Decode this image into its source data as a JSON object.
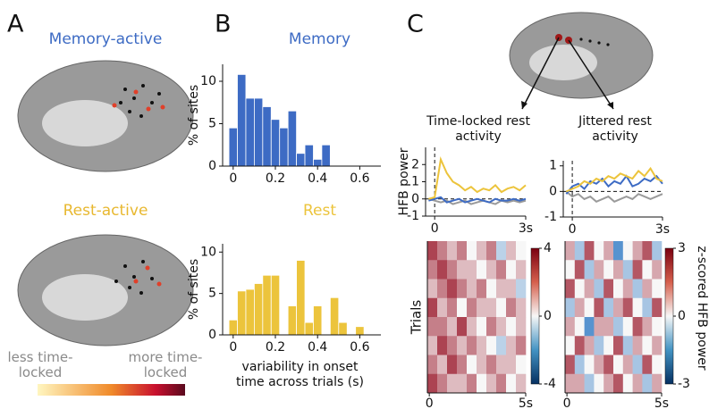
{
  "panels": {
    "a": {
      "label": "A",
      "memory_title": "Memory-active",
      "rest_title": "Rest-active",
      "colorbar_low": "less time-locked",
      "colorbar_high": "more time-locked"
    },
    "b": {
      "label": "B"
    },
    "c": {
      "label": "C"
    }
  },
  "chart_data": [
    {
      "type": "histogram",
      "title": "Memory",
      "ylabel": "% of sites",
      "color": "#3d6bc4",
      "bins": [
        -0.02,
        0.02,
        0.06,
        0.1,
        0.14,
        0.18,
        0.22,
        0.26,
        0.3,
        0.34,
        0.38,
        0.42,
        0.46
      ],
      "values": [
        4.5,
        10.8,
        8,
        8,
        7,
        5.5,
        4.5,
        6.5,
        1.5,
        2.5,
        0.8,
        2.5
      ],
      "xlim": [
        -0.05,
        0.7
      ],
      "xticks": [
        0,
        0.2,
        0.4,
        0.6
      ],
      "ylim": [
        0,
        12
      ],
      "yticks": [
        0,
        5,
        10
      ]
    },
    {
      "type": "histogram",
      "title": "Rest",
      "ylabel": "% of sites",
      "xlabel": "variability in onset time across trials (s)",
      "color": "#ecc43c",
      "bins": [
        -0.02,
        0.02,
        0.06,
        0.1,
        0.14,
        0.18,
        0.22,
        0.26,
        0.3,
        0.34,
        0.38,
        0.42,
        0.46,
        0.5,
        0.54,
        0.58,
        0.62
      ],
      "values": [
        1.8,
        5.3,
        5.5,
        6.2,
        7.2,
        7.2,
        0,
        3.5,
        9,
        1.5,
        3.5,
        0,
        4.5,
        1.5,
        0,
        1
      ],
      "xlim": [
        -0.05,
        0.7
      ],
      "xticks": [
        0,
        0.2,
        0.4,
        0.6
      ],
      "ylim": [
        0,
        11
      ],
      "yticks": [
        0,
        5,
        10
      ]
    },
    {
      "type": "line",
      "title": "Time-locked rest activity",
      "ylabel": "HFB power",
      "x": [
        -0.2,
        0,
        0.2,
        0.4,
        0.6,
        0.8,
        1,
        1.2,
        1.4,
        1.6,
        1.8,
        2,
        2.2,
        2.4,
        2.6,
        2.8,
        3
      ],
      "series": [
        {
          "color": "#9a9a9a",
          "values": [
            0,
            -0.1,
            -0.2,
            -0.1,
            -0.3,
            -0.2,
            -0.1,
            -0.3,
            -0.2,
            -0.1,
            -0.2,
            -0.3,
            -0.1,
            -0.2,
            -0.1,
            -0.2,
            -0.1
          ]
        },
        {
          "color": "#3d6bc4",
          "values": [
            -0.1,
            0,
            0.1,
            -0.2,
            -0.1,
            0,
            -0.2,
            -0.1,
            0,
            -0.1,
            -0.2,
            0,
            -0.1,
            -0.1,
            0,
            -0.1,
            0
          ]
        },
        {
          "color": "#ecc43c",
          "values": [
            0,
            0.1,
            2.3,
            1.5,
            1,
            0.8,
            0.5,
            0.7,
            0.4,
            0.6,
            0.5,
            0.8,
            0.4,
            0.6,
            0.7,
            0.5,
            0.8
          ]
        }
      ],
      "xlim": [
        -0.3,
        3
      ],
      "xticks": [
        0,
        {
          "value": 3,
          "label": "3s"
        }
      ],
      "ylim": [
        -1,
        3
      ],
      "yticks": [
        -1,
        0,
        1,
        2
      ]
    },
    {
      "type": "line",
      "title": "Jittered rest activity",
      "x": [
        -0.2,
        0,
        0.2,
        0.4,
        0.6,
        0.8,
        1,
        1.2,
        1.4,
        1.6,
        1.8,
        2,
        2.2,
        2.4,
        2.6,
        2.8,
        3
      ],
      "series": [
        {
          "color": "#9a9a9a",
          "values": [
            0,
            -0.2,
            -0.1,
            -0.3,
            -0.2,
            -0.4,
            -0.3,
            -0.2,
            -0.4,
            -0.3,
            -0.2,
            -0.3,
            -0.1,
            -0.2,
            -0.3,
            -0.2,
            -0.1
          ]
        },
        {
          "color": "#3d6bc4",
          "values": [
            -0.1,
            0.2,
            0.3,
            0.1,
            0.4,
            0.3,
            0.5,
            0.2,
            0.4,
            0.3,
            0.6,
            0.2,
            0.3,
            0.5,
            0.4,
            0.6,
            0.3
          ]
        },
        {
          "color": "#ecc43c",
          "values": [
            0,
            0.1,
            0.2,
            0.4,
            0.3,
            0.5,
            0.4,
            0.6,
            0.5,
            0.7,
            0.6,
            0.5,
            0.8,
            0.6,
            0.9,
            0.5,
            0.4
          ]
        }
      ],
      "xlim": [
        -0.3,
        3
      ],
      "xticks": [
        0,
        {
          "value": 3,
          "label": "3s"
        }
      ],
      "ylim": [
        -1,
        1.2
      ],
      "yticks": [
        -1,
        0,
        1
      ]
    },
    {
      "type": "heatmap",
      "ylabel": "Trials",
      "xlim": [
        -0.1,
        5
      ],
      "xticks": [
        0,
        {
          "value": 5,
          "label": "5s"
        }
      ],
      "clim": [
        -4,
        4
      ],
      "cticks": [
        4,
        0,
        -4
      ],
      "values": [
        [
          3,
          2,
          1,
          2,
          0,
          1,
          2,
          -1,
          1,
          0
        ],
        [
          2,
          3,
          2,
          1,
          1,
          0,
          1,
          2,
          0,
          1
        ],
        [
          1,
          2,
          3,
          2,
          1,
          2,
          0,
          1,
          1,
          -1
        ],
        [
          3,
          1,
          2,
          0,
          2,
          1,
          1,
          0,
          2,
          1
        ],
        [
          2,
          2,
          1,
          3,
          1,
          0,
          2,
          1,
          0,
          1
        ],
        [
          1,
          3,
          2,
          1,
          2,
          1,
          0,
          -1,
          1,
          2
        ],
        [
          2,
          1,
          3,
          2,
          0,
          1,
          2,
          1,
          1,
          0
        ],
        [
          3,
          2,
          1,
          1,
          2,
          0,
          1,
          2,
          0,
          1
        ]
      ]
    },
    {
      "type": "heatmap",
      "clabel": "z-scored HFB power",
      "xlim": [
        -0.1,
        5
      ],
      "xticks": [
        0,
        {
          "value": 5,
          "label": "5s"
        }
      ],
      "clim": [
        -3,
        3
      ],
      "cticks": [
        3,
        0,
        -3
      ],
      "values": [
        [
          1,
          -1,
          2,
          0,
          1,
          -2,
          0,
          1,
          2,
          -1
        ],
        [
          0,
          2,
          -1,
          1,
          0,
          1,
          -1,
          2,
          0,
          1
        ],
        [
          2,
          0,
          1,
          -1,
          2,
          0,
          1,
          -1,
          1,
          0
        ],
        [
          -1,
          1,
          0,
          2,
          -1,
          1,
          2,
          0,
          -1,
          2
        ],
        [
          1,
          0,
          -2,
          1,
          1,
          -1,
          0,
          2,
          1,
          0
        ],
        [
          0,
          2,
          1,
          -1,
          0,
          2,
          -1,
          1,
          0,
          1
        ],
        [
          2,
          -1,
          0,
          1,
          2,
          0,
          1,
          -1,
          2,
          0
        ],
        [
          1,
          1,
          -1,
          0,
          1,
          2,
          0,
          1,
          -1,
          1
        ]
      ]
    }
  ]
}
